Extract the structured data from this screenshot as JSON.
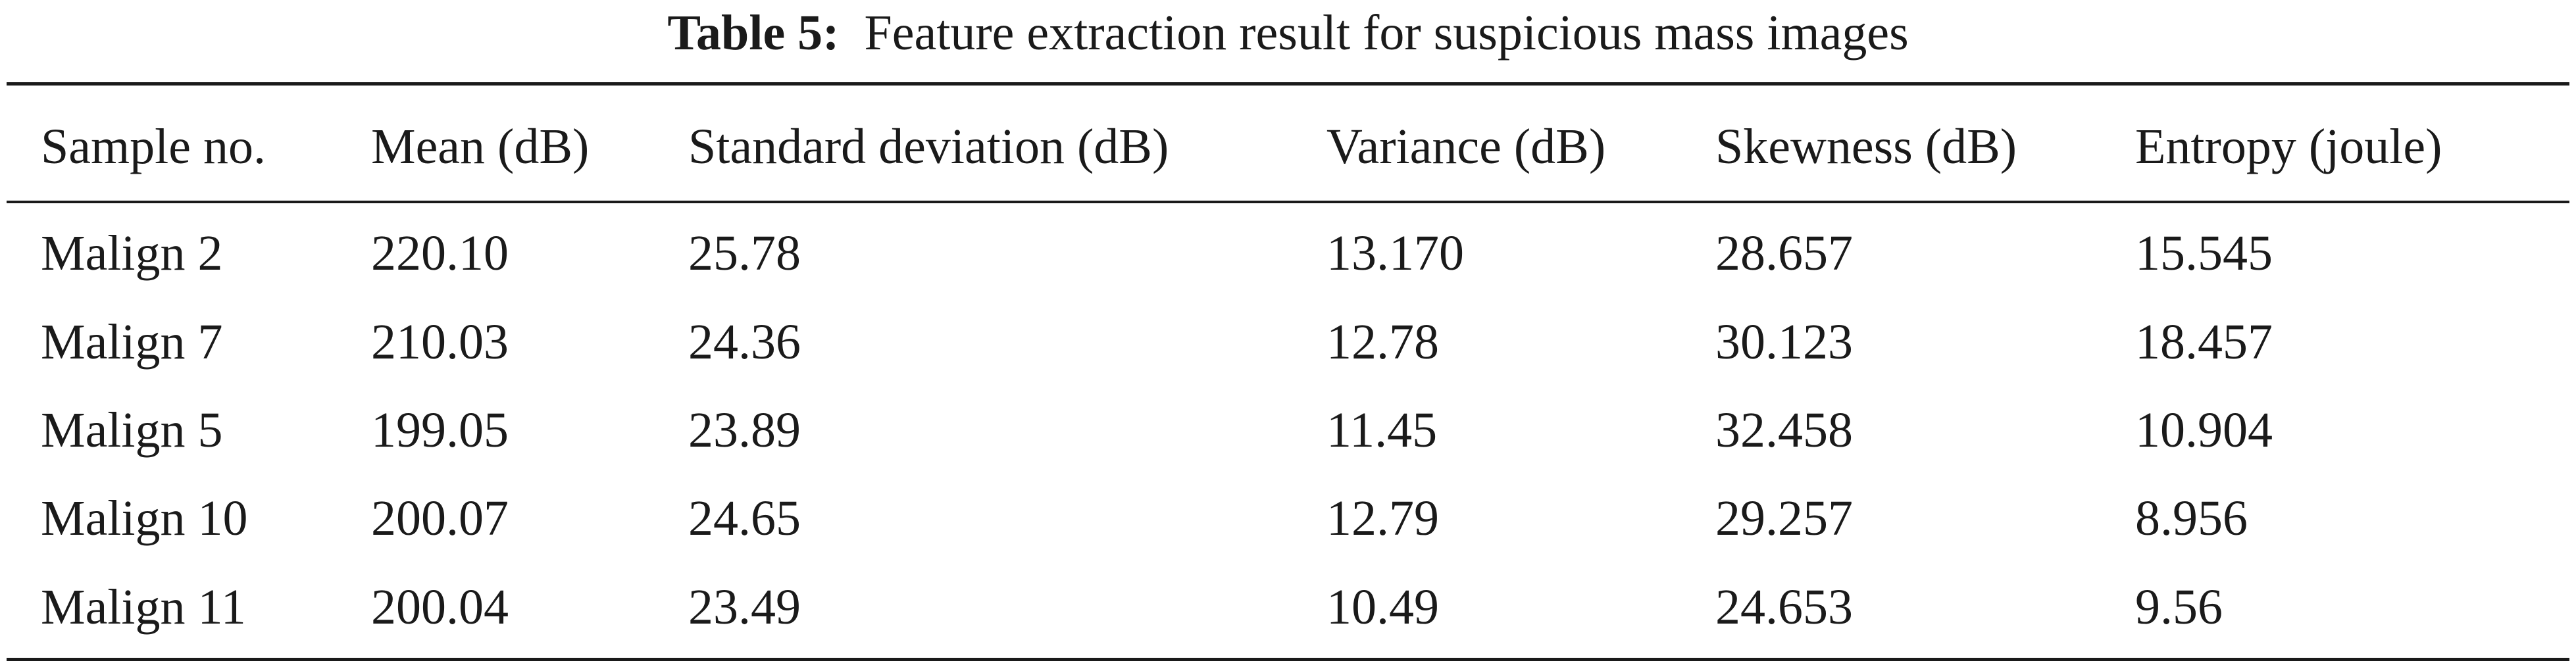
{
  "caption": {
    "label": "Table 5:",
    "text": "Feature extraction result for suspicious mass images"
  },
  "table": {
    "headers": [
      "Sample no.",
      "Mean (dB)",
      "Standard deviation (dB)",
      "Variance (dB)",
      "Skewness (dB)",
      "Entropy (joule)"
    ],
    "rows": [
      [
        "Malign 2",
        "220.10",
        "25.78",
        "13.170",
        "28.657",
        "15.545"
      ],
      [
        "Malign 7",
        "210.03",
        "24.36",
        "12.78",
        "30.123",
        "18.457"
      ],
      [
        "Malign 5",
        "199.05",
        "23.89",
        "11.45",
        "32.458",
        "10.904"
      ],
      [
        "Malign 10",
        "200.07",
        "24.65",
        "12.79",
        "29.257",
        "8.956"
      ],
      [
        "Malign 11",
        "200.04",
        "23.49",
        "10.49",
        "24.653",
        "9.56"
      ]
    ]
  }
}
